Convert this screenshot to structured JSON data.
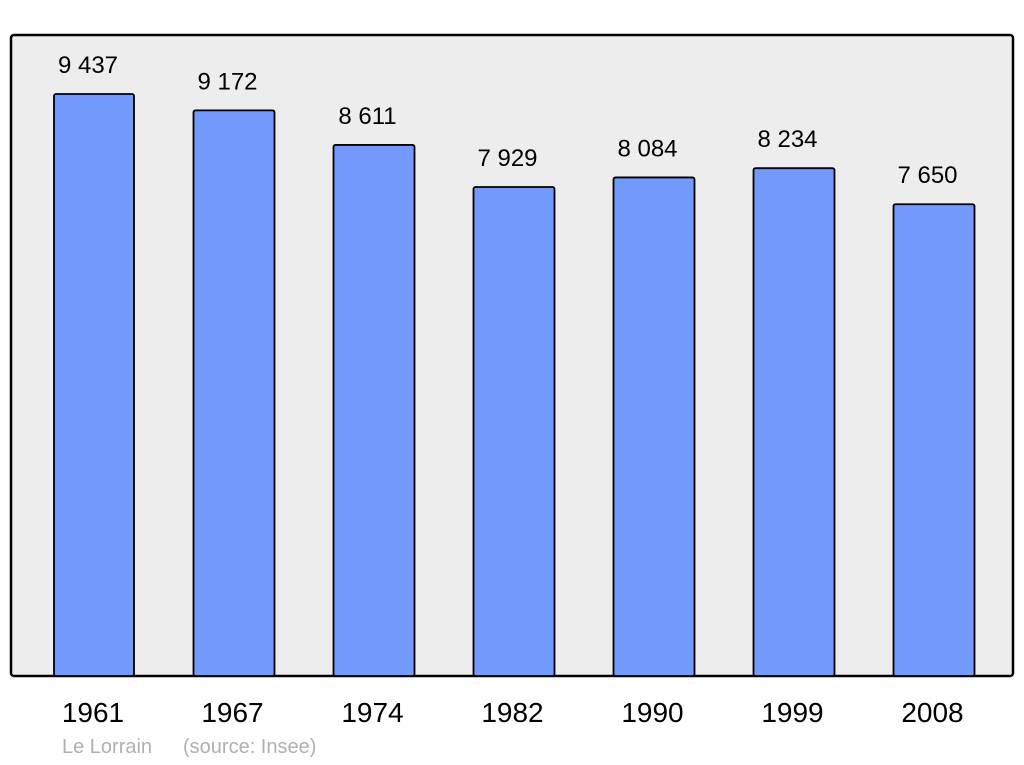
{
  "chart_data": {
    "type": "bar",
    "categories": [
      "1961",
      "1967",
      "1974",
      "1982",
      "1990",
      "1999",
      "2008"
    ],
    "values": [
      9437,
      9172,
      8611,
      7929,
      8084,
      8234,
      7650
    ],
    "value_labels": [
      "9 437",
      "9 172",
      "8 611",
      "7 929",
      "8 084",
      "8 234",
      "7 650"
    ],
    "title": "",
    "xlabel": "",
    "ylabel": "",
    "ylim": [
      0,
      10394
    ],
    "grid": false,
    "colors": {
      "bar": "#7399ff",
      "plot_bg": "#ededed",
      "border": "#000000",
      "footer": "#b0b0b0"
    }
  },
  "footer": {
    "place": "Le Lorrain",
    "source": "(source: Insee)"
  }
}
